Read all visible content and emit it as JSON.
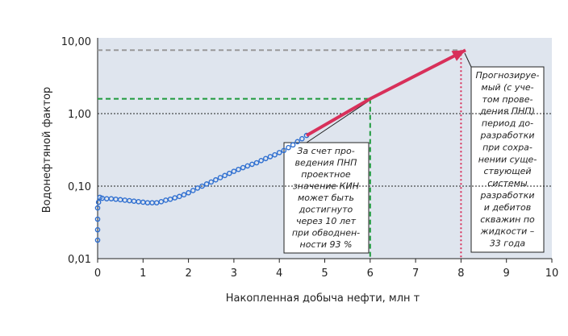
{
  "chart_data": {
    "type": "scatter",
    "xlabel": "Накопленная добыча нефти, млн т",
    "ylabel": "Водонефтяной фактор",
    "xlim": [
      0,
      10
    ],
    "ylim": [
      0.01,
      10
    ],
    "log_y": true,
    "xticks": [
      0,
      1,
      2,
      3,
      4,
      5,
      6,
      7,
      8,
      9,
      10
    ],
    "yticks": [
      {
        "value": 0.01,
        "label": "0,01"
      },
      {
        "value": 0.1,
        "label": "0,10"
      },
      {
        "value": 1,
        "label": "1,00"
      },
      {
        "value": 10,
        "label": "10,00"
      }
    ],
    "grid": true,
    "series": [
      {
        "kind": "points",
        "color": "#2f6fd0",
        "x": [
          0,
          0,
          0,
          0,
          0.02,
          0.05,
          0.1,
          0.2,
          0.3,
          0.4,
          0.5,
          0.6,
          0.7,
          0.8,
          0.9,
          1.0,
          1.1,
          1.2,
          1.3,
          1.4,
          1.5,
          1.6,
          1.7,
          1.8,
          1.9,
          2.0,
          2.1,
          2.2,
          2.3,
          2.4,
          2.5,
          2.6,
          2.7,
          2.8,
          2.9,
          3.0,
          3.1,
          3.2,
          3.3,
          3.4,
          3.5,
          3.6,
          3.7,
          3.8,
          3.9,
          4.0,
          4.1,
          4.2,
          4.3,
          4.4,
          4.5,
          4.6
        ],
        "values": [
          0.018,
          0.025,
          0.035,
          0.05,
          0.06,
          0.07,
          0.068,
          0.067,
          0.067,
          0.066,
          0.065,
          0.064,
          0.063,
          0.062,
          0.061,
          0.06,
          0.059,
          0.059,
          0.059,
          0.061,
          0.064,
          0.066,
          0.069,
          0.072,
          0.076,
          0.081,
          0.087,
          0.094,
          0.1,
          0.107,
          0.114,
          0.122,
          0.131,
          0.14,
          0.15,
          0.16,
          0.17,
          0.18,
          0.19,
          0.2,
          0.21,
          0.225,
          0.24,
          0.255,
          0.27,
          0.29,
          0.31,
          0.34,
          0.37,
          0.41,
          0.45,
          0.5
        ]
      },
      {
        "kind": "arrow",
        "color": "#d8305a",
        "x": [
          4.6,
          6,
          8.1
        ],
        "values": [
          0.5,
          1.6,
          7.5
        ]
      }
    ],
    "reference_lines": [
      {
        "axis": "y",
        "value": 1.6,
        "to_x": 6,
        "color": "#1e9a3c"
      },
      {
        "axis": "x",
        "value": 6,
        "to_y": 1.6,
        "color": "#1e9a3c"
      },
      {
        "axis": "y",
        "value": 7.5,
        "to_x": 8,
        "color": "#999999"
      },
      {
        "axis": "x",
        "value": 8,
        "to_y": 7.5,
        "color": "#d8305a"
      }
    ],
    "annotations": [
      {
        "lines": [
          "За счет про-",
          "ведения ПНП",
          "проектное",
          "значение КИН",
          "может быть",
          "достигнуто",
          "через 10 лет",
          "при обводнен-",
          "ности 93 %"
        ]
      },
      {
        "lines": [
          "Прогнозируе-",
          "мый (с уче-",
          "том прове-",
          "дения ПНП)",
          "период до-",
          "разработки",
          "при сохра-",
          "нении суще-",
          "ствующей",
          "системы",
          "разработки",
          "и дебитов",
          "скважин по",
          "жидкости –",
          "33 года"
        ]
      }
    ]
  }
}
